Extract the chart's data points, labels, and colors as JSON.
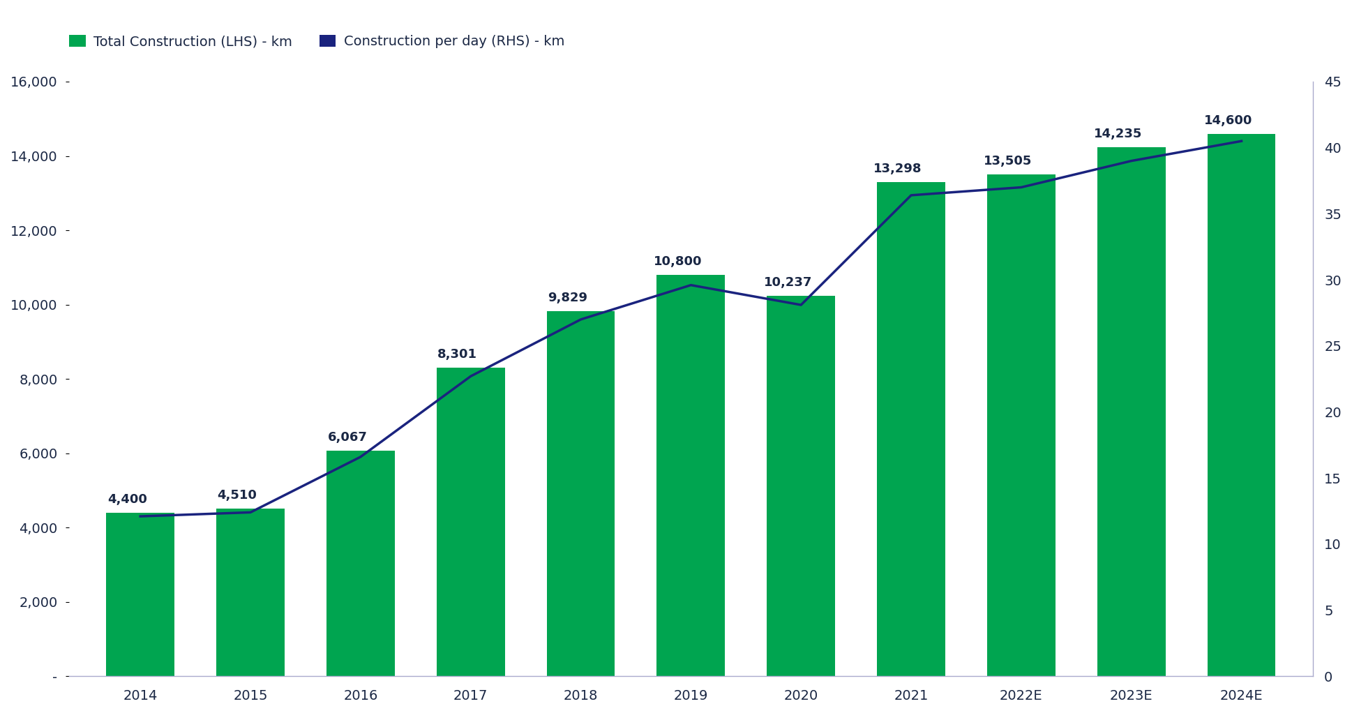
{
  "years": [
    "2014",
    "2015",
    "2016",
    "2017",
    "2018",
    "2019",
    "2020",
    "2021",
    "2022E",
    "2023E",
    "2024E"
  ],
  "total_construction": [
    4400,
    4510,
    6067,
    8301,
    9829,
    10800,
    10237,
    13298,
    13505,
    14235,
    14600
  ],
  "construction_per_day": [
    12.1,
    12.4,
    16.6,
    22.7,
    27.0,
    29.6,
    28.1,
    36.4,
    37.0,
    39.0,
    40.5
  ],
  "bar_color": "#00A550",
  "line_color": "#1A237E",
  "text_color": "#1a2744",
  "axis_color": "#aaaacc",
  "lhs_ylim": [
    0,
    16000
  ],
  "lhs_yticks": [
    0,
    2000,
    4000,
    6000,
    8000,
    10000,
    12000,
    14000,
    16000
  ],
  "lhs_yticklabels": [
    "-",
    "2,000",
    "4,000",
    "6,000",
    "8,000",
    "10,000",
    "12,000",
    "14,000",
    "16,000"
  ],
  "rhs_ylim": [
    0,
    45
  ],
  "rhs_yticks": [
    0,
    5,
    10,
    15,
    20,
    25,
    30,
    35,
    40,
    45
  ],
  "legend_bar_label": "Total Construction (LHS) - km",
  "legend_line_label": "Construction per day (RHS) - km",
  "bar_annotations": [
    "4,400",
    "4,510",
    "6,067",
    "8,301",
    "9,829",
    "10,800",
    "10,237",
    "13,298",
    "13,505",
    "14,235",
    "14,600"
  ],
  "background_color": "#ffffff",
  "figsize": [
    19.38,
    10.22
  ],
  "dpi": 100
}
